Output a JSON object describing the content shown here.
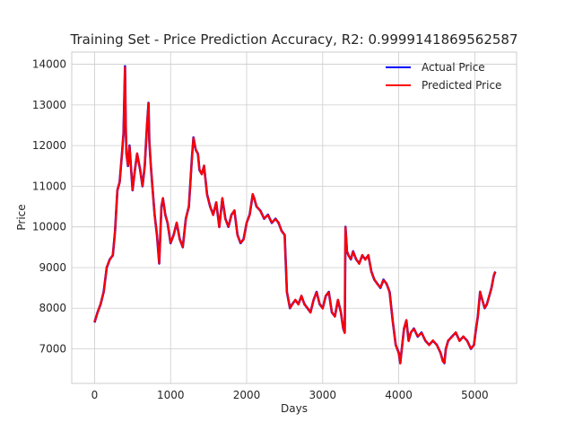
{
  "chart_data": {
    "type": "line",
    "title": "Training Set - Price Prediction Accuracy, R2: 0.9999141869562587",
    "xlabel": "Days",
    "ylabel": "Price",
    "xlim": [
      -300,
      5550
    ],
    "ylim": [
      6150,
      14300
    ],
    "xticks": [
      0,
      1000,
      2000,
      3000,
      4000,
      5000
    ],
    "yticks": [
      7000,
      8000,
      9000,
      10000,
      11000,
      12000,
      13000,
      14000
    ],
    "grid": true,
    "legend_position": "top-right",
    "series": [
      {
        "name": "Actual Price",
        "color": "#0000ff",
        "x": [
          0,
          40,
          80,
          120,
          160,
          200,
          240,
          270,
          300,
          330,
          360,
          380,
          400,
          410,
          420,
          440,
          460,
          500,
          530,
          560,
          600,
          630,
          660,
          690,
          710,
          720,
          740,
          760,
          790,
          820,
          850,
          880,
          900,
          930,
          960,
          1000,
          1040,
          1080,
          1120,
          1160,
          1200,
          1240,
          1280,
          1300,
          1330,
          1360,
          1380,
          1410,
          1440,
          1480,
          1520,
          1560,
          1600,
          1640,
          1680,
          1720,
          1760,
          1800,
          1840,
          1880,
          1920,
          1960,
          2000,
          2040,
          2080,
          2100,
          2130,
          2180,
          2230,
          2280,
          2330,
          2380,
          2420,
          2460,
          2500,
          2530,
          2550,
          2570,
          2600,
          2640,
          2680,
          2720,
          2760,
          2800,
          2840,
          2880,
          2920,
          2960,
          3000,
          3040,
          3080,
          3120,
          3160,
          3200,
          3240,
          3270,
          3290,
          3300,
          3320,
          3340,
          3370,
          3400,
          3440,
          3480,
          3520,
          3560,
          3600,
          3640,
          3680,
          3720,
          3760,
          3800,
          3840,
          3880,
          3920,
          3940,
          3960,
          3980,
          4000,
          4020,
          4040,
          4070,
          4100,
          4130,
          4160,
          4200,
          4250,
          4300,
          4350,
          4400,
          4450,
          4500,
          4550,
          4580,
          4600,
          4620,
          4650,
          4700,
          4750,
          4800,
          4850,
          4900,
          4950,
          4990,
          5010,
          5040,
          5070,
          5100,
          5130,
          5160,
          5190,
          5220,
          5250,
          5270
        ],
        "values": [
          7650,
          7900,
          8100,
          8400,
          9000,
          9200,
          9300,
          9900,
          10900,
          11100,
          11800,
          12300,
          13950,
          12500,
          11800,
          11500,
          12000,
          10900,
          11400,
          11800,
          11400,
          11000,
          11500,
          12500,
          13050,
          12100,
          11500,
          11000,
          10300,
          9800,
          9100,
          10500,
          10700,
          10300,
          10100,
          9600,
          9800,
          10100,
          9700,
          9500,
          10200,
          10500,
          11700,
          12200,
          11900,
          11800,
          11400,
          11300,
          11500,
          10800,
          10500,
          10300,
          10600,
          10000,
          10700,
          10200,
          10000,
          10300,
          10400,
          9800,
          9600,
          9700,
          10100,
          10300,
          10800,
          10700,
          10500,
          10400,
          10200,
          10300,
          10100,
          10200,
          10100,
          9900,
          9800,
          8400,
          8200,
          8000,
          8100,
          8200,
          8100,
          8300,
          8100,
          8000,
          7900,
          8200,
          8400,
          8100,
          8000,
          8300,
          8400,
          7900,
          7800,
          8200,
          7900,
          7500,
          7400,
          10000,
          9400,
          9300,
          9200,
          9400,
          9200,
          9100,
          9300,
          9200,
          9300,
          8900,
          8700,
          8600,
          8500,
          8700,
          8600,
          8400,
          7700,
          7400,
          7100,
          7000,
          6900,
          6650,
          7000,
          7500,
          7700,
          7200,
          7400,
          7500,
          7300,
          7400,
          7200,
          7100,
          7200,
          7100,
          6900,
          6700,
          6650,
          7000,
          7200,
          7300,
          7400,
          7200,
          7300,
          7200,
          7000,
          7100,
          7400,
          7800,
          8400,
          8200,
          8000,
          8100,
          8300,
          8500,
          8800,
          8900
        ]
      },
      {
        "name": "Predicted Price",
        "color": "#ff0000",
        "x": [
          0,
          40,
          80,
          120,
          160,
          200,
          240,
          270,
          300,
          330,
          360,
          380,
          400,
          410,
          420,
          440,
          460,
          500,
          530,
          560,
          600,
          630,
          660,
          690,
          710,
          720,
          740,
          760,
          790,
          820,
          850,
          880,
          900,
          930,
          960,
          1000,
          1040,
          1080,
          1120,
          1160,
          1200,
          1240,
          1280,
          1300,
          1330,
          1360,
          1380,
          1410,
          1440,
          1480,
          1520,
          1560,
          1600,
          1640,
          1680,
          1720,
          1760,
          1800,
          1840,
          1880,
          1920,
          1960,
          2000,
          2040,
          2080,
          2100,
          2130,
          2180,
          2230,
          2280,
          2330,
          2380,
          2420,
          2460,
          2500,
          2530,
          2550,
          2570,
          2600,
          2640,
          2680,
          2720,
          2760,
          2800,
          2840,
          2880,
          2920,
          2960,
          3000,
          3040,
          3080,
          3120,
          3160,
          3200,
          3240,
          3270,
          3290,
          3300,
          3320,
          3340,
          3370,
          3400,
          3440,
          3480,
          3520,
          3560,
          3600,
          3640,
          3680,
          3720,
          3760,
          3800,
          3840,
          3880,
          3920,
          3940,
          3960,
          3980,
          4000,
          4020,
          4040,
          4070,
          4100,
          4130,
          4160,
          4200,
          4250,
          4300,
          4350,
          4400,
          4450,
          4500,
          4550,
          4580,
          4600,
          4620,
          4650,
          4700,
          4750,
          4800,
          4850,
          4900,
          4950,
          4990,
          5010,
          5040,
          5070,
          5100,
          5130,
          5160,
          5190,
          5220,
          5250,
          5270
        ],
        "values": [
          7660,
          7890,
          8110,
          8390,
          9010,
          9190,
          9310,
          9890,
          10910,
          11090,
          11810,
          12290,
          13930,
          12510,
          11790,
          11510,
          11990,
          10910,
          11390,
          11810,
          11390,
          11010,
          11490,
          12510,
          13040,
          12110,
          11490,
          11010,
          10290,
          9810,
          9110,
          10490,
          10710,
          10290,
          10110,
          9610,
          9790,
          10110,
          9690,
          9510,
          10190,
          10510,
          11690,
          12190,
          11910,
          11790,
          11410,
          11290,
          11510,
          10790,
          10510,
          10290,
          10610,
          9990,
          10710,
          10190,
          10010,
          10290,
          10410,
          9790,
          9610,
          9690,
          10110,
          10290,
          10810,
          10690,
          10510,
          10390,
          10210,
          10290,
          10110,
          10190,
          10110,
          9890,
          9810,
          8410,
          8190,
          8010,
          8090,
          8210,
          8090,
          8310,
          8090,
          8010,
          7890,
          8210,
          8390,
          8110,
          7990,
          8310,
          8390,
          7910,
          7790,
          8210,
          7890,
          7510,
          7390,
          9990,
          9410,
          9290,
          9210,
          9390,
          9210,
          9090,
          9310,
          9190,
          9310,
          8890,
          8710,
          8590,
          8510,
          8690,
          8610,
          8390,
          7710,
          7390,
          7110,
          6990,
          6910,
          6640,
          7010,
          7490,
          7710,
          7190,
          7410,
          7490,
          7310,
          7390,
          7210,
          7090,
          7210,
          7090,
          6910,
          6690,
          6660,
          6990,
          7210,
          7290,
          7410,
          7190,
          7310,
          7190,
          7010,
          7090,
          7410,
          7790,
          8410,
          8190,
          8010,
          8090,
          8310,
          8490,
          8810,
          8890
        ]
      }
    ]
  }
}
